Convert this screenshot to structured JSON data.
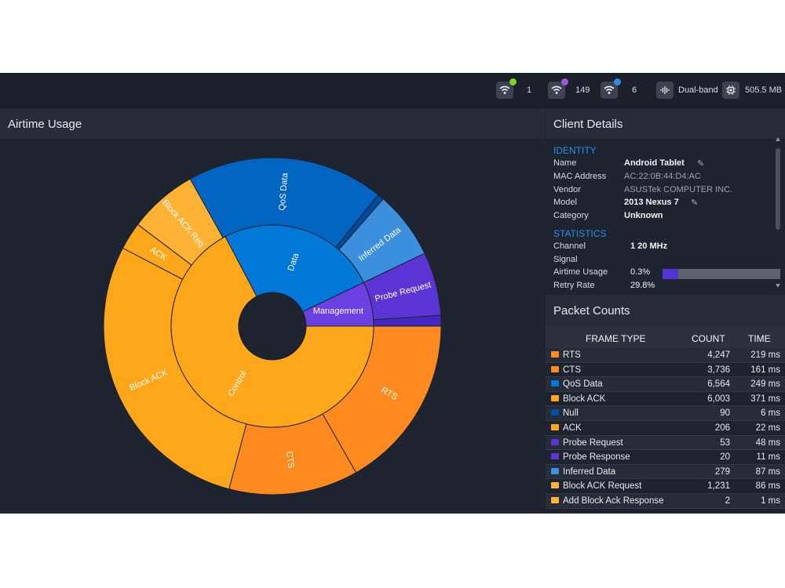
{
  "topbar": {
    "stats": [
      {
        "icon": "wifi-icon",
        "dot_color": "#7ed321",
        "value": "1"
      },
      {
        "icon": "wifi-icon",
        "dot_color": "#9b59d0",
        "value": "149"
      },
      {
        "icon": "wifi-icon",
        "dot_color": "#2d8be8",
        "value": "6"
      },
      {
        "icon": "signal-wave-icon",
        "value": "Dual-band"
      },
      {
        "icon": "chip-icon",
        "value": "505.5 MB"
      }
    ]
  },
  "airtime": {
    "title": "Airtime Usage"
  },
  "chart_data": {
    "type": "sunburst",
    "colors": {
      "control": "#ffa71a",
      "data": "#0078d7",
      "management": "#6a40e0"
    },
    "inner": [
      {
        "name": "Control",
        "value": 67.3,
        "color": "#ffa71a"
      },
      {
        "name": "Data",
        "value": 25.6,
        "color": "#0078d7"
      },
      {
        "name": "Management",
        "value": 7.1,
        "color": "#6a40e0"
      }
    ],
    "outer": [
      {
        "name": "RTS",
        "value": 16.5,
        "color": "#ff8a1f"
      },
      {
        "name": "CTS",
        "value": 12.2,
        "color": "#ff8a1f"
      },
      {
        "name": "Block ACK",
        "value": 28.1,
        "color": "#ffa71a"
      },
      {
        "name": "ACK",
        "value": 2.6,
        "color": "#ffa71a"
      },
      {
        "name": "Block ACK Req.",
        "value": 6.5,
        "color": "#ffb233"
      },
      {
        "name": "QoS Data",
        "value": 18.6,
        "color": "#0064c0"
      },
      {
        "name": "",
        "value": 0.6,
        "color": "#004c99"
      },
      {
        "name": "Inferred Data",
        "value": 6.4,
        "color": "#3b8fdc"
      },
      {
        "name": "Probe Request",
        "value": 6.0,
        "color": "#5b35d4"
      },
      {
        "name": "",
        "value": 1.0,
        "color": "#4426c0"
      }
    ]
  },
  "client": {
    "title": "Client Details",
    "identity_label": "IDENTITY",
    "statistics_label": "STATISTICS",
    "name_key": "Name",
    "name_val": "Android Tablet",
    "mac_key": "MAC Address",
    "mac_val": "AC:22:0B:44:D4:AC",
    "vendor_key": "Vendor",
    "vendor_val": "ASUSTek COMPUTER INC.",
    "model_key": "Model",
    "model_val": "2013 Nexus 7",
    "category_key": "Category",
    "category_val": "Unknown",
    "channel_key": "Channel",
    "channel_val": "1  20 MHz",
    "signal_key": "Signal",
    "airtime_key": "Airtime Usage",
    "airtime_val": "0.3%",
    "airtime_fraction": 0.003,
    "retry_key": "Retry Rate",
    "retry_val": "29.8%"
  },
  "packets": {
    "title": "Packet Counts",
    "col_type": "FRAME TYPE",
    "col_count": "COUNT",
    "col_time": "TIME",
    "rows": [
      {
        "name": "RTS",
        "count": "4,247",
        "time": "219 ms",
        "color": "#ff8a1f"
      },
      {
        "name": "CTS",
        "count": "3,736",
        "time": "161 ms",
        "color": "#ff8a1f"
      },
      {
        "name": "QoS Data",
        "count": "6,564",
        "time": "249 ms",
        "color": "#0078d7"
      },
      {
        "name": "Block ACK",
        "count": "6,003",
        "time": "371 ms",
        "color": "#ffa71a"
      },
      {
        "name": "Null",
        "count": "90",
        "time": "6 ms",
        "color": "#0050a0"
      },
      {
        "name": "ACK",
        "count": "206",
        "time": "22 ms",
        "color": "#ffa71a"
      },
      {
        "name": "Probe Request",
        "count": "53",
        "time": "48 ms",
        "color": "#5b35d4"
      },
      {
        "name": "Probe Response",
        "count": "20",
        "time": "11 ms",
        "color": "#5b35d4"
      },
      {
        "name": "Inferred Data",
        "count": "279",
        "time": "87 ms",
        "color": "#3b8fdc"
      },
      {
        "name": "Block ACK Request",
        "count": "1,231",
        "time": "86 ms",
        "color": "#ffb233"
      },
      {
        "name": "Add Block Ack Response",
        "count": "2",
        "time": "1 ms",
        "color": "#ffb233"
      }
    ]
  }
}
